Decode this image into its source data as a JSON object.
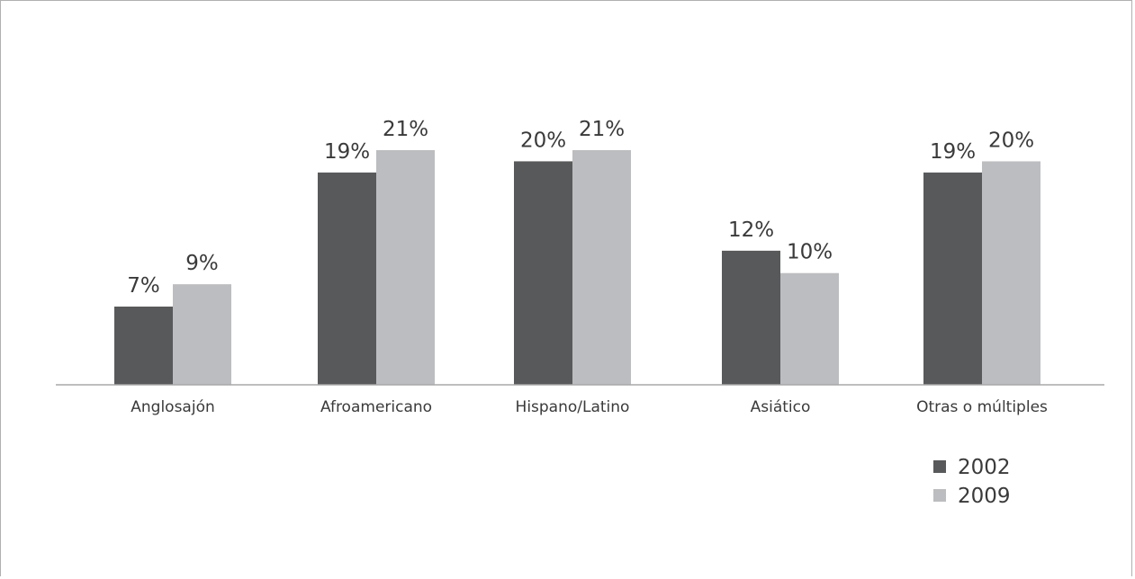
{
  "chart_data": {
    "type": "bar",
    "categories": [
      "Anglosajón",
      "Afroamericano",
      "Hispano/Latino",
      "Asiático",
      "Otras o múltiples"
    ],
    "series": [
      {
        "name": "2002",
        "color": "#58595b",
        "values": [
          7,
          19,
          20,
          12,
          19
        ],
        "labels": [
          "7%",
          "19%",
          "20%",
          "12%",
          "19%"
        ]
      },
      {
        "name": "2009",
        "color": "#bcbdc0",
        "values": [
          9,
          21,
          21,
          10,
          20
        ],
        "labels": [
          "9%",
          "21%",
          "21%",
          "10%",
          "20%"
        ]
      }
    ],
    "title": "",
    "xlabel": "",
    "ylabel": "",
    "ylim": [
      0,
      21
    ],
    "grid": false,
    "legend_position": "bottom-right"
  }
}
